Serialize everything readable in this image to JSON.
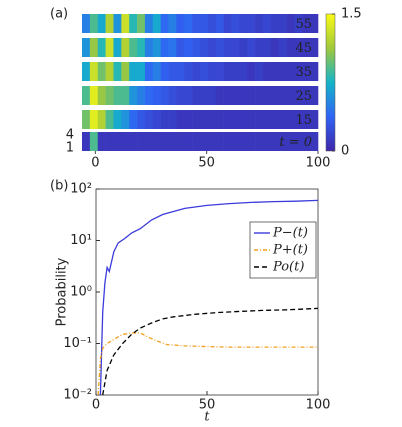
{
  "chart_data": [
    {
      "type": "heatmap",
      "panel_label": "(a)",
      "xlim": [
        -6,
        100
      ],
      "xticks": [
        0,
        50,
        100
      ],
      "row_labels": [
        "4",
        "1"
      ],
      "colorbar": {
        "ylim": [
          0,
          1.5
        ],
        "yticks": [
          0,
          1.5
        ]
      },
      "strips": [
        {
          "label": "55",
          "values": [
            0.5,
            0.9,
            0.7,
            1.2,
            0.6,
            1.3,
            0.8,
            1.0,
            0.5,
            0.7,
            0.4,
            0.5,
            0.35,
            0.4,
            0.3,
            0.3,
            0.25,
            0.3,
            0.2,
            0.25,
            0.2,
            0.2,
            0.15,
            0.2,
            0.15,
            0.15,
            0.1,
            0.15,
            0.1,
            0.1
          ]
        },
        {
          "label": "45",
          "values": [
            0.6,
            1.1,
            0.8,
            1.3,
            0.7,
            1.2,
            0.9,
            0.8,
            0.5,
            0.6,
            0.4,
            0.45,
            0.3,
            0.35,
            0.3,
            0.25,
            0.2,
            0.25,
            0.2,
            0.2,
            0.15,
            0.2,
            0.15,
            0.15,
            0.1,
            0.15,
            0.1,
            0.1,
            0.1,
            0.1
          ]
        },
        {
          "label": "35",
          "values": [
            0.7,
            1.3,
            1.0,
            1.2,
            0.8,
            1.1,
            0.7,
            0.7,
            0.4,
            0.5,
            0.35,
            0.3,
            0.3,
            0.25,
            0.2,
            0.25,
            0.2,
            0.2,
            0.15,
            0.15,
            0.15,
            0.1,
            0.15,
            0.1,
            0.1,
            0.1,
            0.1,
            0.1,
            0.1,
            0.1
          ]
        },
        {
          "label": "25",
          "values": [
            0.9,
            1.4,
            1.1,
            1.0,
            0.9,
            0.9,
            0.6,
            0.5,
            0.4,
            0.35,
            0.3,
            0.25,
            0.2,
            0.2,
            0.15,
            0.15,
            0.15,
            0.1,
            0.1,
            0.1,
            0.1,
            0.1,
            0.1,
            0.1,
            0.1,
            0.1,
            0.1,
            0.1,
            0.1,
            0.1
          ]
        },
        {
          "label": "15",
          "values": [
            1.0,
            1.4,
            1.2,
            0.9,
            0.7,
            0.6,
            0.4,
            0.3,
            0.25,
            0.2,
            0.15,
            0.15,
            0.1,
            0.1,
            0.1,
            0.1,
            0.1,
            0.1,
            0.1,
            0.1,
            0.1,
            0.1,
            0.1,
            0.1,
            0.1,
            0.1,
            0.1,
            0.1,
            0.1,
            0.1
          ]
        },
        {
          "label": "t = 0",
          "values": [
            0.1,
            0.9,
            0.1,
            0.1,
            0.1,
            0.1,
            0.1,
            0.1,
            0.1,
            0.1,
            0.1,
            0.1,
            0.1,
            0.1,
            0.1,
            0.1,
            0.1,
            0.1,
            0.1,
            0.1,
            0.1,
            0.1,
            0.1,
            0.1,
            0.1,
            0.1,
            0.1,
            0.1,
            0.1,
            0.1
          ]
        }
      ]
    },
    {
      "type": "line",
      "panel_label": "(b)",
      "xlabel": "t",
      "ylabel": "Probability",
      "log_y": true,
      "xlim": [
        0,
        100
      ],
      "xticks": [
        0,
        50,
        100
      ],
      "ylim": [
        0.01,
        100
      ],
      "yticks": [
        {
          "value": 0.01,
          "label": "10⁻²"
        },
        {
          "value": 0.1,
          "label": "10⁻¹"
        },
        {
          "value": 1,
          "label": "10⁰"
        },
        {
          "value": 10,
          "label": "10¹"
        },
        {
          "value": 100,
          "label": "10²"
        }
      ],
      "legend": "upper right",
      "series": [
        {
          "name": "P−(t)",
          "color": "#3b3bdb",
          "dash": "",
          "x": [
            2,
            3,
            4,
            5,
            6,
            8,
            10,
            13,
            16,
            20,
            25,
            30,
            40,
            50,
            60,
            70,
            80,
            90,
            100
          ],
          "values": [
            0.01,
            0.4,
            1.5,
            3,
            2.5,
            6,
            9,
            11,
            14,
            17,
            25,
            32,
            42,
            48,
            52,
            55,
            57,
            58,
            60
          ]
        },
        {
          "name": "P+(t)",
          "color": "#f0a020",
          "dash": "4 2 1 2",
          "x": [
            1,
            2,
            3,
            5,
            8,
            12,
            16,
            20,
            24,
            28,
            32,
            40,
            50,
            60,
            70,
            80,
            90,
            100
          ],
          "values": [
            0.01,
            0.05,
            0.08,
            0.1,
            0.12,
            0.15,
            0.16,
            0.16,
            0.13,
            0.11,
            0.095,
            0.09,
            0.087,
            0.085,
            0.085,
            0.085,
            0.085,
            0.085
          ]
        },
        {
          "name": "Po(t)",
          "color": "#000000",
          "dash": "5 3",
          "x": [
            3,
            5,
            8,
            12,
            16,
            20,
            25,
            30,
            35,
            45,
            55,
            65,
            75,
            85,
            100
          ],
          "values": [
            0.01,
            0.03,
            0.06,
            0.1,
            0.15,
            0.2,
            0.25,
            0.3,
            0.33,
            0.37,
            0.4,
            0.42,
            0.44,
            0.45,
            0.48
          ]
        }
      ]
    }
  ]
}
